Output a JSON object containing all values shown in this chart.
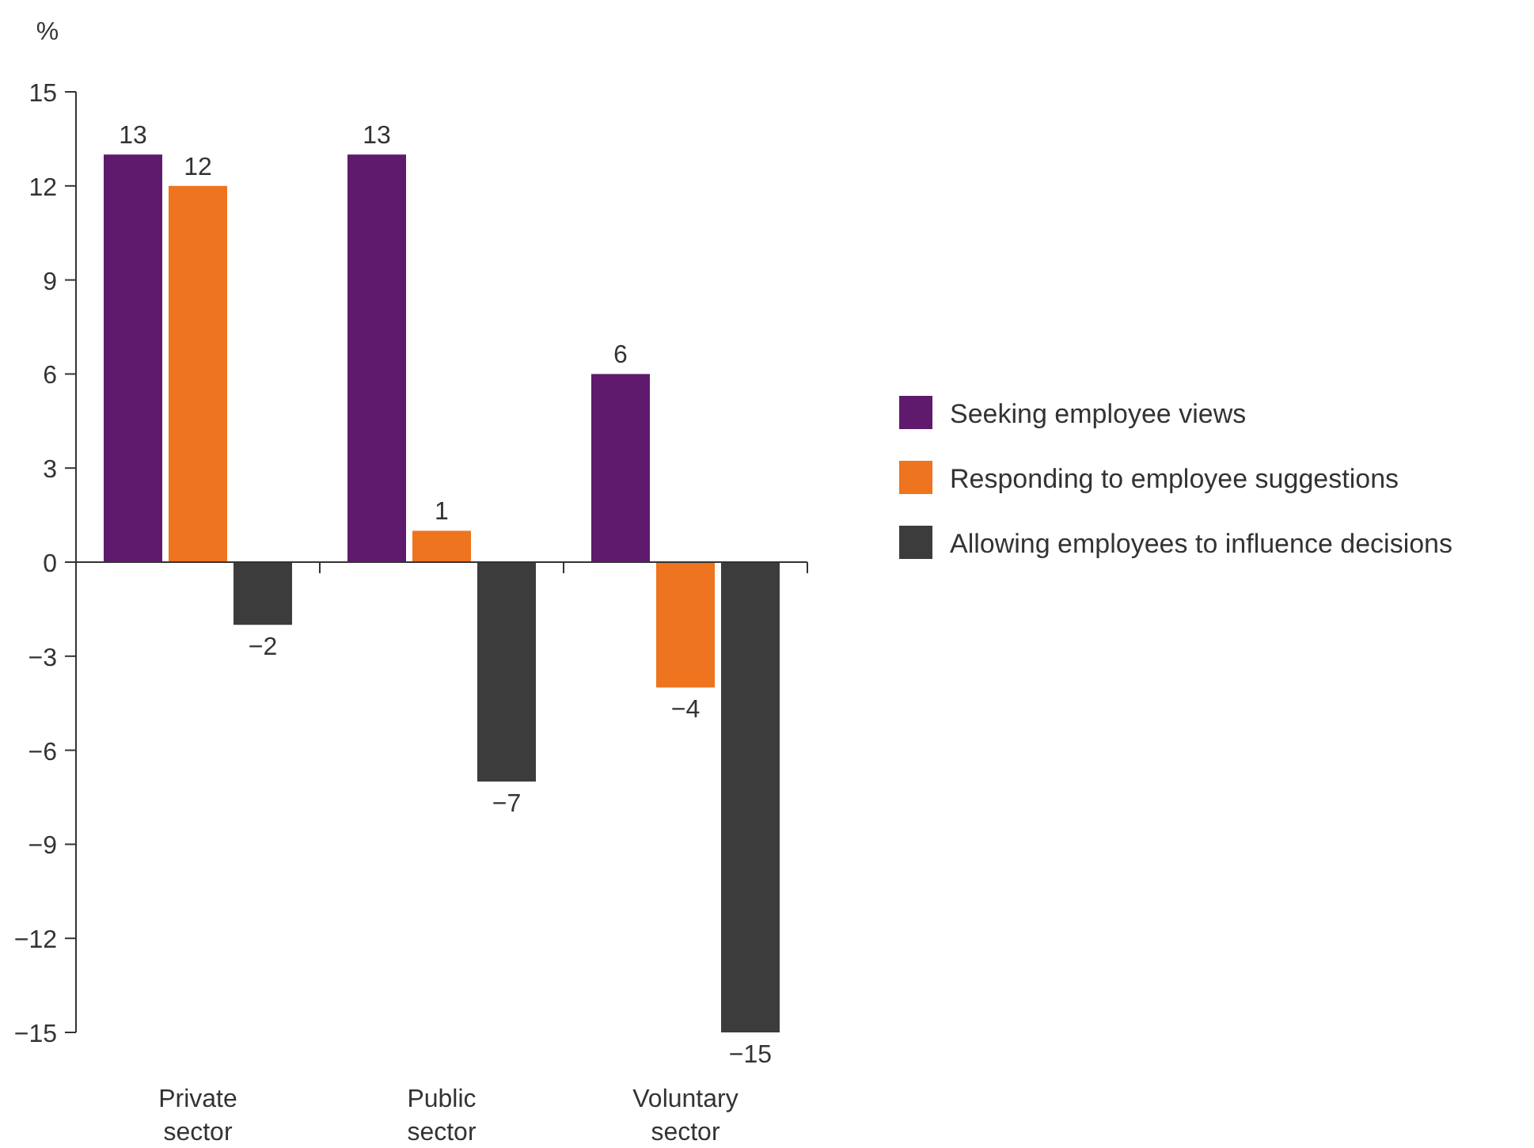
{
  "chart_data": {
    "type": "bar",
    "ylabel": "%",
    "categories": [
      "Private sector",
      "Public sector",
      "Voluntary sector"
    ],
    "series": [
      {
        "name": "Seeking employee views",
        "color": "#5f1a6e",
        "values": [
          13,
          13,
          6
        ]
      },
      {
        "name": "Responding to employee suggestions",
        "color": "#ee741f",
        "values": [
          12,
          1,
          -4
        ]
      },
      {
        "name": "Allowing employees to influence decisions",
        "color": "#3c3c3c",
        "values": [
          -2,
          -7,
          -15
        ]
      }
    ],
    "ylim": [
      -15,
      15
    ],
    "yticks": [
      -15,
      -12,
      -9,
      -6,
      -3,
      0,
      3,
      6,
      9,
      12,
      15
    ],
    "data_labels": true,
    "legend": "right"
  }
}
